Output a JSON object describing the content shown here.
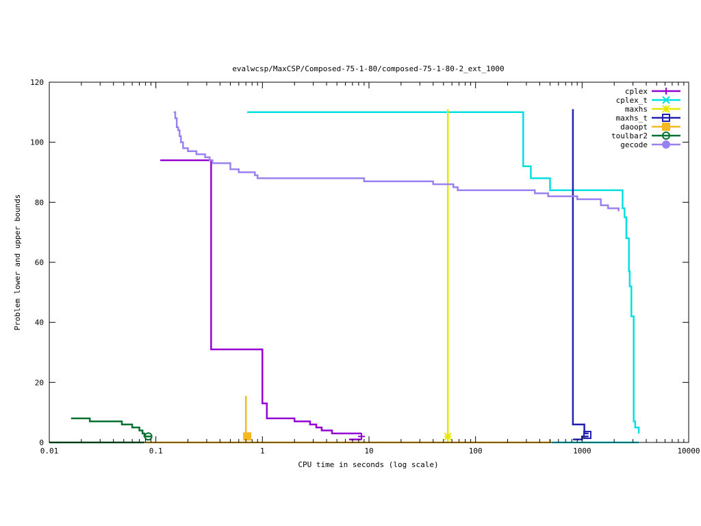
{
  "chart_data": {
    "type": "line",
    "title": "evalwcsp/MaxCSP/Composed-75-1-80/composed-75-1-80-2_ext_1000",
    "xlabel": "CPU time in seconds (log scale)",
    "ylabel": "Problem lower and upper bounds",
    "xscale": "log",
    "xlim": [
      0.01,
      10000
    ],
    "ylim": [
      0,
      120
    ],
    "xticks": [
      {
        "value": 0.01,
        "label": "0.01"
      },
      {
        "value": 0.1,
        "label": "0.1"
      },
      {
        "value": 1,
        "label": "1"
      },
      {
        "value": 10,
        "label": "10"
      },
      {
        "value": 100,
        "label": "100"
      },
      {
        "value": 1000,
        "label": "1000"
      },
      {
        "value": 10000,
        "label": "10000"
      }
    ],
    "yticks": [
      {
        "value": 0,
        "label": "0"
      },
      {
        "value": 20,
        "label": "20"
      },
      {
        "value": 40,
        "label": "40"
      },
      {
        "value": 60,
        "label": "60"
      },
      {
        "value": 80,
        "label": "80"
      },
      {
        "value": 100,
        "label": "100"
      },
      {
        "value": 120,
        "label": "120"
      }
    ],
    "grid": false,
    "legend_position": "top-right",
    "series": [
      {
        "name": "cplex",
        "color": "#9400D3",
        "marker": "plus",
        "upper": [
          [
            0.11,
            94
          ],
          [
            0.33,
            94
          ],
          [
            0.33,
            31
          ],
          [
            1.0,
            31
          ],
          [
            1.0,
            13
          ],
          [
            1.1,
            13
          ],
          [
            1.1,
            8
          ],
          [
            2.0,
            8
          ],
          [
            2.0,
            7
          ],
          [
            2.8,
            7
          ],
          [
            2.8,
            6
          ],
          [
            3.2,
            6
          ],
          [
            3.2,
            5
          ],
          [
            3.6,
            5
          ],
          [
            3.6,
            4
          ],
          [
            4.5,
            4
          ],
          [
            4.5,
            3
          ],
          [
            8.5,
            3
          ]
        ],
        "lower": [
          [
            6.5,
            1
          ],
          [
            8.5,
            1
          ]
        ],
        "final": [
          8.5,
          2
        ]
      },
      {
        "name": "cplex_t",
        "color": "#00E0E0",
        "marker": "x-cross",
        "upper": [
          [
            0.72,
            110
          ],
          [
            280,
            110
          ],
          [
            280,
            92
          ],
          [
            330,
            92
          ],
          [
            330,
            88
          ],
          [
            500,
            88
          ],
          [
            500,
            84
          ],
          [
            2400,
            84
          ],
          [
            2400,
            78
          ],
          [
            2500,
            78
          ],
          [
            2500,
            75
          ],
          [
            2600,
            75
          ],
          [
            2600,
            68
          ],
          [
            2750,
            68
          ],
          [
            2750,
            57
          ],
          [
            2800,
            57
          ],
          [
            2800,
            52
          ],
          [
            2900,
            52
          ],
          [
            2900,
            42
          ],
          [
            3050,
            42
          ],
          [
            3050,
            7
          ],
          [
            3150,
            7
          ],
          [
            3150,
            5
          ],
          [
            3400,
            5
          ],
          [
            3400,
            3
          ]
        ],
        "lower": [
          [
            520,
            0
          ],
          [
            3400,
            0
          ]
        ]
      },
      {
        "name": "maxhs",
        "color": "#E6E600",
        "marker": "star",
        "upper": [
          [
            55,
            111
          ],
          [
            55,
            2
          ]
        ],
        "lower": [
          [
            55,
            0
          ],
          [
            55,
            2
          ]
        ],
        "final": [
          55,
          2
        ]
      },
      {
        "name": "maxhs_t",
        "color": "#2020B0",
        "marker": "square",
        "upper": [
          [
            820,
            111
          ],
          [
            820,
            6
          ],
          [
            1050,
            6
          ],
          [
            1050,
            3
          ],
          [
            1150,
            3
          ]
        ],
        "lower": [
          [
            820,
            1
          ],
          [
            1000,
            1
          ],
          [
            1000,
            2
          ],
          [
            1150,
            2
          ]
        ],
        "final": [
          1120,
          2.5
        ]
      },
      {
        "name": "daoopt",
        "color": "#F5B820",
        "marker": "filled-square",
        "upper": [
          [
            0.7,
            15.5
          ],
          [
            0.7,
            2
          ]
        ],
        "lower": [
          [
            0.08,
            0
          ],
          [
            500,
            0
          ],
          [
            500,
            1
          ]
        ],
        "final": [
          0.72,
          2
        ]
      },
      {
        "name": "toulbar2",
        "color": "#007030",
        "marker": "circle",
        "upper": [
          [
            0.016,
            8
          ],
          [
            0.024,
            8
          ],
          [
            0.024,
            7
          ],
          [
            0.048,
            7
          ],
          [
            0.048,
            6
          ],
          [
            0.06,
            6
          ],
          [
            0.06,
            5
          ],
          [
            0.07,
            5
          ],
          [
            0.07,
            4
          ],
          [
            0.075,
            4
          ],
          [
            0.075,
            3
          ],
          [
            0.078,
            3
          ],
          [
            0.078,
            2
          ],
          [
            0.09,
            2
          ]
        ],
        "lower": [
          [
            0.01,
            0
          ],
          [
            0.078,
            0
          ]
        ],
        "final": [
          0.085,
          2
        ]
      },
      {
        "name": "gecode",
        "color": "#9A80F0",
        "marker": "filled-circle",
        "upper": [
          [
            0.147,
            110
          ],
          [
            0.152,
            110
          ],
          [
            0.152,
            108
          ],
          [
            0.157,
            108
          ],
          [
            0.157,
            105
          ],
          [
            0.162,
            105
          ],
          [
            0.162,
            104
          ],
          [
            0.167,
            104
          ],
          [
            0.167,
            102
          ],
          [
            0.172,
            102
          ],
          [
            0.172,
            100
          ],
          [
            0.18,
            100
          ],
          [
            0.18,
            98
          ],
          [
            0.2,
            98
          ],
          [
            0.2,
            97
          ],
          [
            0.24,
            97
          ],
          [
            0.24,
            96
          ],
          [
            0.29,
            96
          ],
          [
            0.29,
            95
          ],
          [
            0.32,
            95
          ],
          [
            0.32,
            94
          ],
          [
            0.34,
            94
          ],
          [
            0.34,
            93
          ],
          [
            0.5,
            93
          ],
          [
            0.5,
            91
          ],
          [
            0.6,
            91
          ],
          [
            0.6,
            90
          ],
          [
            0.85,
            90
          ],
          [
            0.85,
            89
          ],
          [
            0.9,
            89
          ],
          [
            0.9,
            88
          ],
          [
            9,
            88
          ],
          [
            9,
            87
          ],
          [
            40,
            87
          ],
          [
            40,
            86
          ],
          [
            62,
            86
          ],
          [
            62,
            85
          ],
          [
            68,
            85
          ],
          [
            68,
            84
          ],
          [
            360,
            84
          ],
          [
            360,
            83
          ],
          [
            480,
            83
          ],
          [
            480,
            82
          ],
          [
            900,
            82
          ],
          [
            900,
            81
          ],
          [
            1500,
            81
          ],
          [
            1500,
            79
          ],
          [
            1750,
            79
          ],
          [
            1750,
            78
          ],
          [
            2200,
            78
          ],
          [
            2200,
            77
          ]
        ]
      }
    ]
  }
}
